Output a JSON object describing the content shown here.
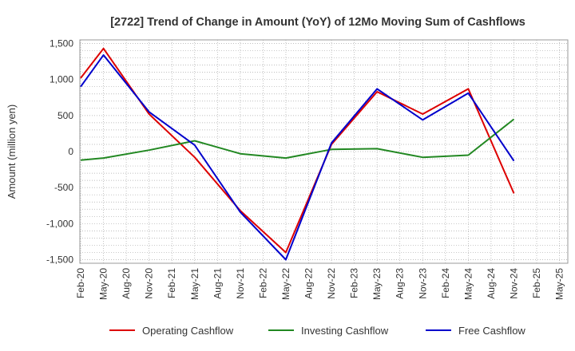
{
  "chart_data": {
    "type": "line",
    "title": "[2722]  Trend of Change in Amount (YoY) of 12Mo Moving Sum of Cashflows",
    "xlabel": "",
    "ylabel": "Amount (million yen)",
    "ylim": [
      -1550,
      1550
    ],
    "yticks": [
      1500,
      1000,
      500,
      0,
      -500,
      -1000,
      -1500
    ],
    "ytick_labels": [
      "1,500",
      "1,000",
      "500",
      "0",
      "-500",
      "-1,000",
      "-1,500"
    ],
    "grid": true,
    "legend_position": "bottom",
    "categories": [
      "Feb-20",
      "May-20",
      "Aug-20",
      "Nov-20",
      "Feb-21",
      "May-21",
      "Aug-21",
      "Nov-21",
      "Feb-22",
      "May-22",
      "Aug-22",
      "Nov-22",
      "Feb-23",
      "May-23",
      "Aug-23",
      "Nov-23",
      "Feb-24",
      "May-24",
      "Aug-24",
      "Nov-24",
      "Feb-25",
      "May-25"
    ],
    "x_count": 22,
    "series": [
      {
        "name": "Operating Cashflow",
        "color": "#dd0000",
        "values": [
          1020,
          1430,
          null,
          520,
          null,
          -80,
          null,
          -820,
          null,
          -1400,
          null,
          100,
          null,
          830,
          null,
          520,
          null,
          870,
          null,
          -580,
          null,
          null
        ]
      },
      {
        "name": "Investing Cashflow",
        "color": "#228822",
        "values": [
          -120,
          -90,
          null,
          20,
          null,
          150,
          null,
          -30,
          null,
          -90,
          null,
          30,
          null,
          40,
          null,
          -80,
          null,
          -50,
          null,
          450,
          null,
          null
        ]
      },
      {
        "name": "Free Cashflow",
        "color": "#0000cc",
        "values": [
          900,
          1340,
          null,
          550,
          null,
          90,
          null,
          -840,
          null,
          -1500,
          null,
          120,
          null,
          870,
          null,
          440,
          null,
          810,
          null,
          -130,
          null,
          null
        ]
      }
    ]
  }
}
